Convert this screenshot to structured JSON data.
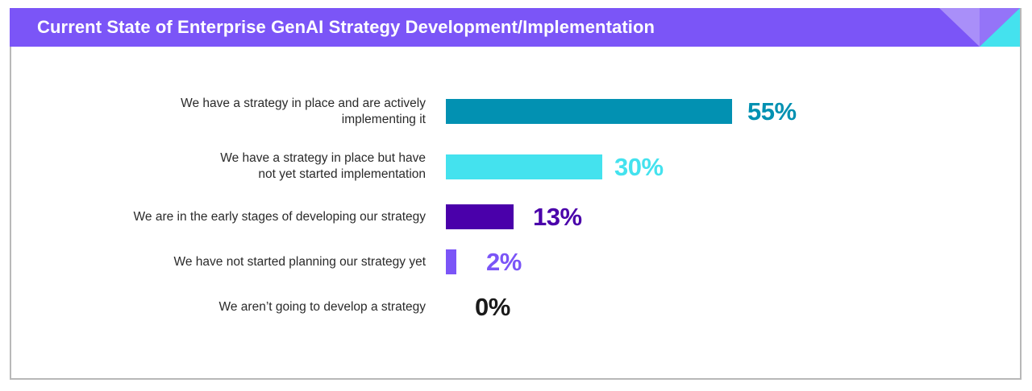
{
  "header": {
    "title": "Current State of Enterprise GenAI Strategy Development/Implementation",
    "background_color": "#7b55f7",
    "decoration": "corner-triangles"
  },
  "rows": [
    {
      "label_lines": [
        "We have a strategy in place and are actively",
        "implementing it"
      ],
      "value": 55,
      "value_label": "55%",
      "color": "#0291b2"
    },
    {
      "label_lines": [
        "We have a strategy in place but have",
        "not yet started implementation"
      ],
      "value": 30,
      "value_label": "30%",
      "color": "#44e2ee"
    },
    {
      "label_lines": [
        "We are in the early stages of developing our strategy"
      ],
      "value": 13,
      "value_label": "13%",
      "color": "#4a00aa"
    },
    {
      "label_lines": [
        "We have not started planning our strategy yet"
      ],
      "value": 2,
      "value_label": "2%",
      "color": "#7b55f7"
    },
    {
      "label_lines": [
        "We aren’t going to develop a strategy"
      ],
      "value": 0,
      "value_label": "0%",
      "color": "#1a1a1a"
    }
  ],
  "chart_data": {
    "type": "bar",
    "orientation": "horizontal",
    "title": "Current State of Enterprise GenAI Strategy Development/Implementation",
    "categories": [
      "We have a strategy in place and are actively implementing it",
      "We have a strategy in place but have not yet started implementation",
      "We are in the early stages of developing our strategy",
      "We have not started planning our strategy yet",
      "We aren’t going to develop a strategy"
    ],
    "values": [
      55,
      30,
      13,
      2,
      0
    ],
    "value_labels": [
      "55%",
      "30%",
      "13%",
      "2%",
      "0%"
    ],
    "colors": [
      "#0291b2",
      "#44e2ee",
      "#4a00aa",
      "#7b55f7",
      "#1a1a1a"
    ],
    "xlabel": "",
    "ylabel": "",
    "unit": "%",
    "grid": false,
    "legend": null
  }
}
